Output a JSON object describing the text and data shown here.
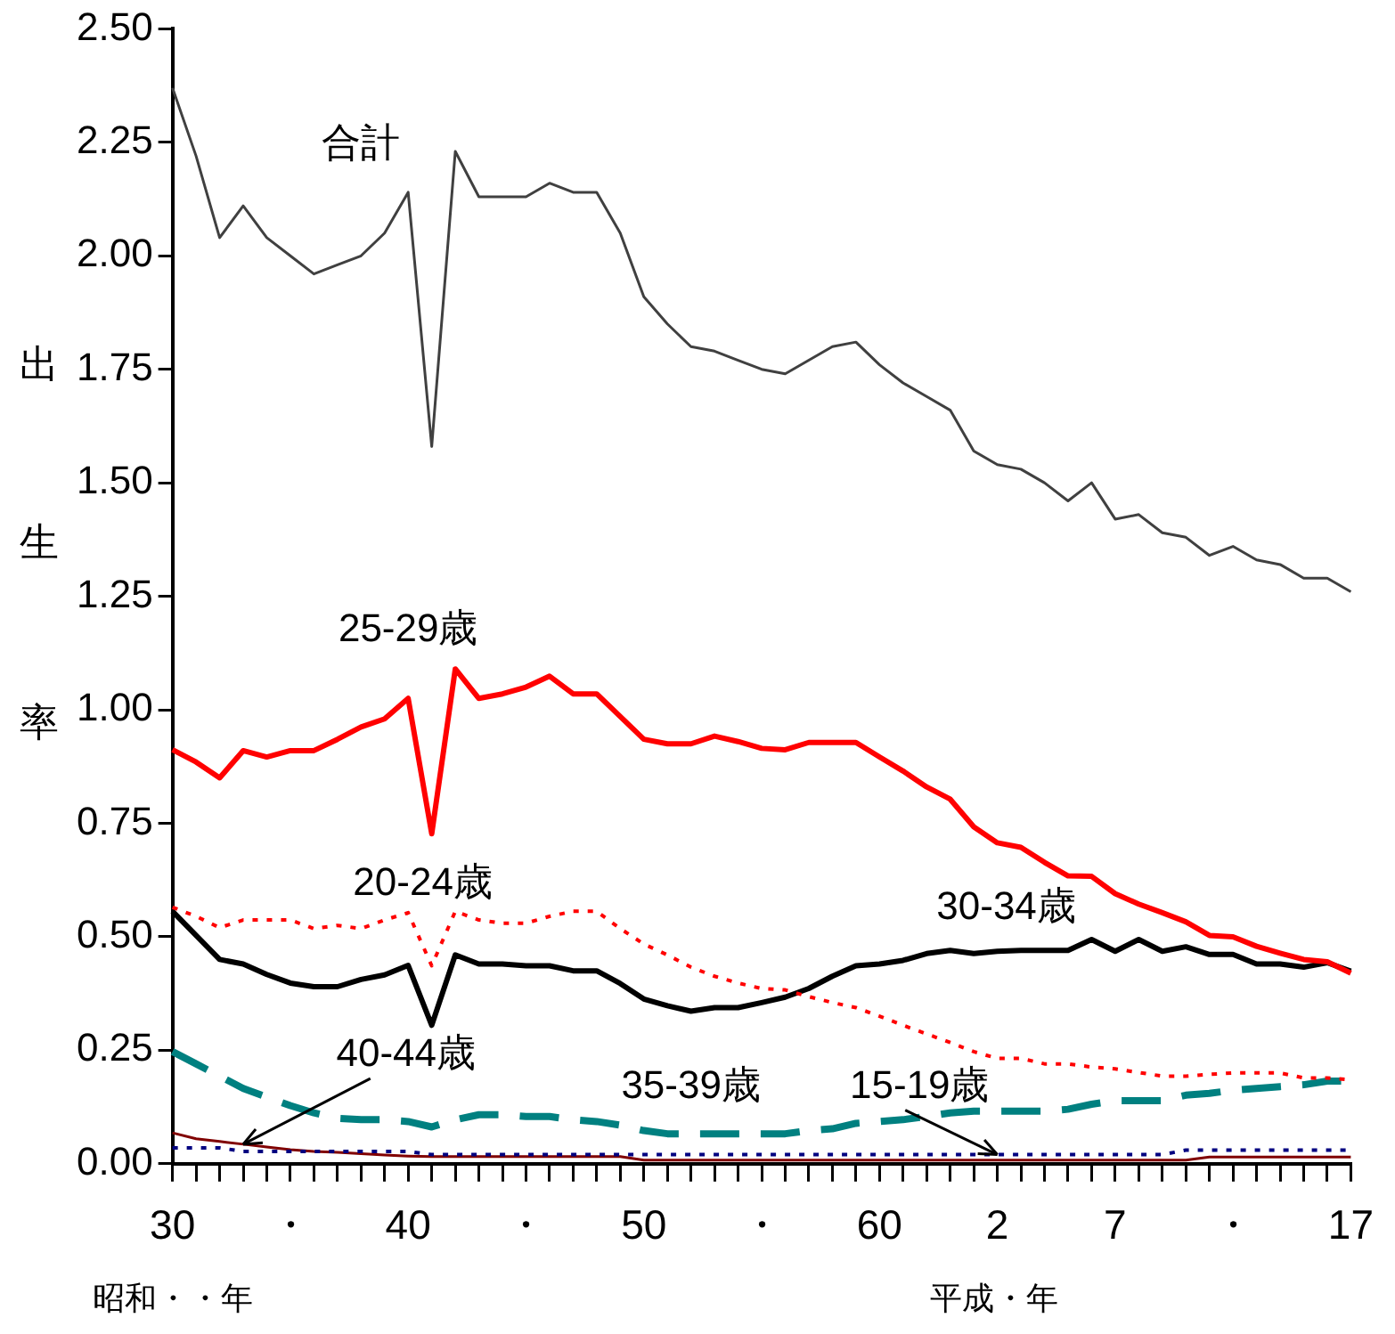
{
  "chart_data": {
    "type": "line",
    "ylabel": "出生率",
    "grid": false,
    "legend": false,
    "marker": "none",
    "categories": [
      "30",
      null,
      null,
      null,
      null,
      "・",
      null,
      null,
      null,
      null,
      "40",
      null,
      null,
      null,
      null,
      "・",
      null,
      null,
      null,
      null,
      "50",
      null,
      null,
      null,
      null,
      "・",
      null,
      null,
      null,
      null,
      "60",
      null,
      null,
      null,
      null,
      "2",
      null,
      null,
      null,
      null,
      "7",
      null,
      null,
      null,
      null,
      "・",
      null,
      null,
      null,
      null,
      "17"
    ],
    "ylim": [
      0,
      2.5
    ],
    "yticks": [
      {
        "value": 0,
        "label": "0.00"
      },
      {
        "value": 0.25,
        "label": "0.25"
      },
      {
        "value": 0.5,
        "label": "0.50"
      },
      {
        "value": 0.75,
        "label": "0.75"
      },
      {
        "value": 1,
        "label": "1.00"
      },
      {
        "value": 1.25,
        "label": "1.25"
      },
      {
        "value": 1.5,
        "label": "1.50"
      },
      {
        "value": 1.75,
        "label": "1.75"
      },
      {
        "value": 2,
        "label": "2.00"
      },
      {
        "value": 2.25,
        "label": "2.25"
      },
      {
        "value": 2.5,
        "label": "2.50"
      }
    ],
    "series": [
      {
        "name": "合計",
        "color": "#404040",
        "line_style": "solid",
        "values": [
          2.37,
          2.22,
          2.04,
          2.11,
          2.04,
          2.0,
          1.96,
          1.98,
          2.0,
          2.05,
          2.14,
          1.58,
          2.23,
          2.13,
          2.13,
          2.13,
          2.16,
          2.14,
          2.14,
          2.05,
          1.91,
          1.85,
          1.8,
          1.79,
          1.77,
          1.75,
          1.74,
          1.77,
          1.8,
          1.81,
          1.76,
          1.72,
          1.69,
          1.66,
          1.57,
          1.54,
          1.53,
          1.5,
          1.46,
          1.5,
          1.42,
          1.43,
          1.39,
          1.38,
          1.34,
          1.36,
          1.33,
          1.32,
          1.29,
          1.29,
          1.26
        ]
      },
      {
        "name": "15-19歳",
        "color": "#000080",
        "line_style": "dotted",
        "values": [
          0.035,
          0.035,
          0.035,
          0.027,
          0.027,
          0.027,
          0.027,
          0.027,
          0.027,
          0.027,
          0.027,
          0.02,
          0.02,
          0.02,
          0.02,
          0.02,
          0.02,
          0.02,
          0.02,
          0.02,
          0.02,
          0.02,
          0.02,
          0.02,
          0.02,
          0.02,
          0.02,
          0.02,
          0.02,
          0.02,
          0.02,
          0.02,
          0.02,
          0.02,
          0.02,
          0.02,
          0.02,
          0.02,
          0.02,
          0.02,
          0.02,
          0.02,
          0.02,
          0.03,
          0.03,
          0.03,
          0.03,
          0.03,
          0.03,
          0.03,
          0.03
        ]
      },
      {
        "name": "20-24歳",
        "color": "#ff0000",
        "line_style": "dotted",
        "values": [
          0.565,
          0.545,
          0.52,
          0.537,
          0.537,
          0.537,
          0.518,
          0.525,
          0.518,
          0.537,
          0.553,
          0.436,
          0.556,
          0.537,
          0.53,
          0.53,
          0.545,
          0.556,
          0.556,
          0.518,
          0.484,
          0.46,
          0.433,
          0.413,
          0.398,
          0.386,
          0.383,
          0.368,
          0.355,
          0.344,
          0.325,
          0.305,
          0.286,
          0.267,
          0.247,
          0.232,
          0.232,
          0.22,
          0.22,
          0.213,
          0.209,
          0.201,
          0.193,
          0.193,
          0.197,
          0.2,
          0.2,
          0.2,
          0.189,
          0.189,
          0.185
        ]
      },
      {
        "name": "25-29歳",
        "color": "#ff0000",
        "line_style": "solid",
        "values": [
          0.912,
          0.885,
          0.85,
          0.91,
          0.896,
          0.91,
          0.91,
          0.935,
          0.962,
          0.98,
          1.025,
          0.727,
          1.09,
          1.025,
          1.035,
          1.05,
          1.074,
          1.035,
          1.035,
          0.985,
          0.935,
          0.925,
          0.925,
          0.942,
          0.93,
          0.915,
          0.912,
          0.928,
          0.928,
          0.928,
          0.896,
          0.865,
          0.83,
          0.803,
          0.742,
          0.707,
          0.697,
          0.664,
          0.634,
          0.633,
          0.595,
          0.572,
          0.553,
          0.533,
          0.503,
          0.5,
          0.479,
          0.464,
          0.45,
          0.445,
          0.42
        ]
      },
      {
        "name": "30-34歳",
        "color": "#000000",
        "line_style": "solid",
        "values": [
          0.556,
          0.503,
          0.45,
          0.44,
          0.417,
          0.398,
          0.39,
          0.39,
          0.406,
          0.416,
          0.437,
          0.305,
          0.46,
          0.44,
          0.44,
          0.436,
          0.436,
          0.425,
          0.425,
          0.397,
          0.363,
          0.348,
          0.336,
          0.344,
          0.344,
          0.355,
          0.367,
          0.386,
          0.413,
          0.436,
          0.44,
          0.448,
          0.463,
          0.47,
          0.463,
          0.468,
          0.47,
          0.47,
          0.47,
          0.494,
          0.468,
          0.494,
          0.468,
          0.478,
          0.461,
          0.461,
          0.44,
          0.44,
          0.433,
          0.443,
          0.424
        ]
      },
      {
        "name": "35-39歳",
        "color": "#008080",
        "line_style": "dashed",
        "values": [
          0.247,
          0.22,
          0.193,
          0.166,
          0.147,
          0.128,
          0.112,
          0.1,
          0.097,
          0.097,
          0.093,
          0.081,
          0.097,
          0.108,
          0.108,
          0.104,
          0.104,
          0.097,
          0.093,
          0.085,
          0.073,
          0.066,
          0.066,
          0.066,
          0.066,
          0.066,
          0.066,
          0.073,
          0.077,
          0.089,
          0.093,
          0.097,
          0.104,
          0.112,
          0.116,
          0.116,
          0.116,
          0.116,
          0.12,
          0.131,
          0.139,
          0.139,
          0.139,
          0.151,
          0.155,
          0.162,
          0.166,
          0.17,
          0.174,
          0.182,
          0.182
        ]
      },
      {
        "name": "40-44歳",
        "color": "#800000",
        "line_style": "solid",
        "values": [
          0.068,
          0.055,
          0.049,
          0.043,
          0.037,
          0.031,
          0.027,
          0.025,
          0.022,
          0.019,
          0.017,
          0.016,
          0.016,
          0.016,
          0.016,
          0.016,
          0.016,
          0.016,
          0.016,
          0.016,
          0.008,
          0.008,
          0.008,
          0.008,
          0.008,
          0.008,
          0.008,
          0.008,
          0.008,
          0.008,
          0.008,
          0.008,
          0.008,
          0.008,
          0.008,
          0.008,
          0.008,
          0.008,
          0.008,
          0.008,
          0.008,
          0.008,
          0.008,
          0.008,
          0.015,
          0.015,
          0.015,
          0.015,
          0.015,
          0.015,
          0.015
        ]
      }
    ],
    "annotations": [
      "昭和・・年",
      "平成・年"
    ]
  }
}
